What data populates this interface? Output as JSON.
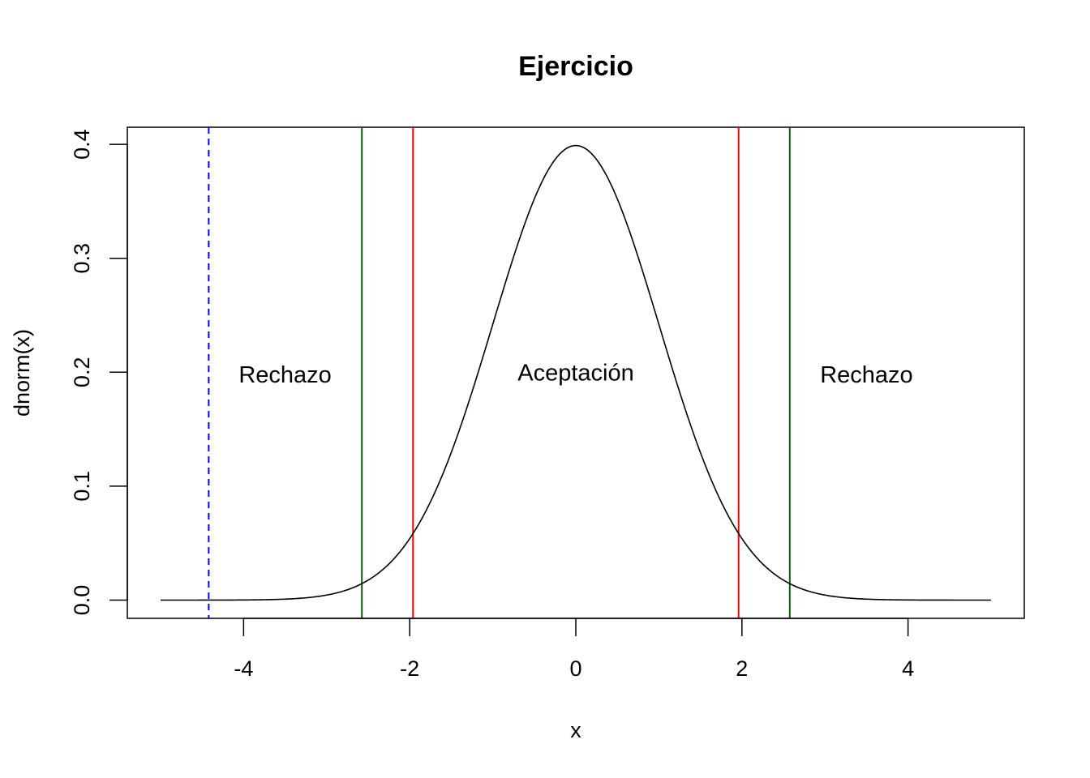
{
  "chart_data": {
    "type": "line",
    "title": "Ejercicio",
    "xlabel": "x",
    "ylabel": "dnorm(x)",
    "xlim": [
      -5.4,
      5.4
    ],
    "ylim": [
      -0.016,
      0.415
    ],
    "x_ticks": [
      -4,
      -2,
      0,
      2,
      4
    ],
    "y_ticks": [
      0.0,
      0.1,
      0.2,
      0.3,
      0.4
    ],
    "x_tick_labels": [
      "-4",
      "-2",
      "0",
      "2",
      "4"
    ],
    "y_tick_labels": [
      "0.0",
      "0.1",
      "0.2",
      "0.3",
      "0.4"
    ],
    "grid": false,
    "curve": {
      "function": "dnorm",
      "mean": 0,
      "sd": 1,
      "x_range": [
        -5,
        5
      ],
      "color": "#000000"
    },
    "vlines": [
      {
        "x": -4.42,
        "color": "#0000ff",
        "style": "dashed"
      },
      {
        "x": -2.576,
        "color": "#006400",
        "style": "solid"
      },
      {
        "x": 2.576,
        "color": "#006400",
        "style": "solid"
      },
      {
        "x": -1.96,
        "color": "#ff0000",
        "style": "solid"
      },
      {
        "x": 1.96,
        "color": "#ff0000",
        "style": "solid"
      }
    ],
    "annotations": [
      {
        "text": "Rechazo",
        "x": -3.5,
        "y": 0.198
      },
      {
        "text": "Aceptación",
        "x": 0.0,
        "y": 0.2
      },
      {
        "text": "Rechazo",
        "x": 3.5,
        "y": 0.198
      }
    ]
  }
}
